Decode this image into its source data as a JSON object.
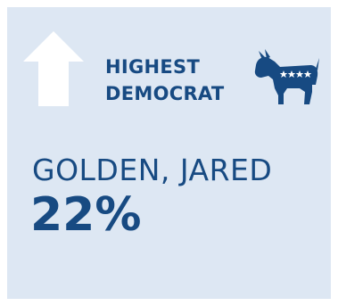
{
  "card": {
    "heading_line1": "HIGHEST",
    "heading_line2": "DEMOCRAT",
    "name": "GOLDEN, JARED",
    "value": "22%",
    "icons": {
      "arrow": "up-arrow-icon",
      "party": "democrat-donkey-icon"
    }
  },
  "colors": {
    "background": "#dde7f3",
    "text": "#174a82",
    "arrow": "#ffffff"
  }
}
